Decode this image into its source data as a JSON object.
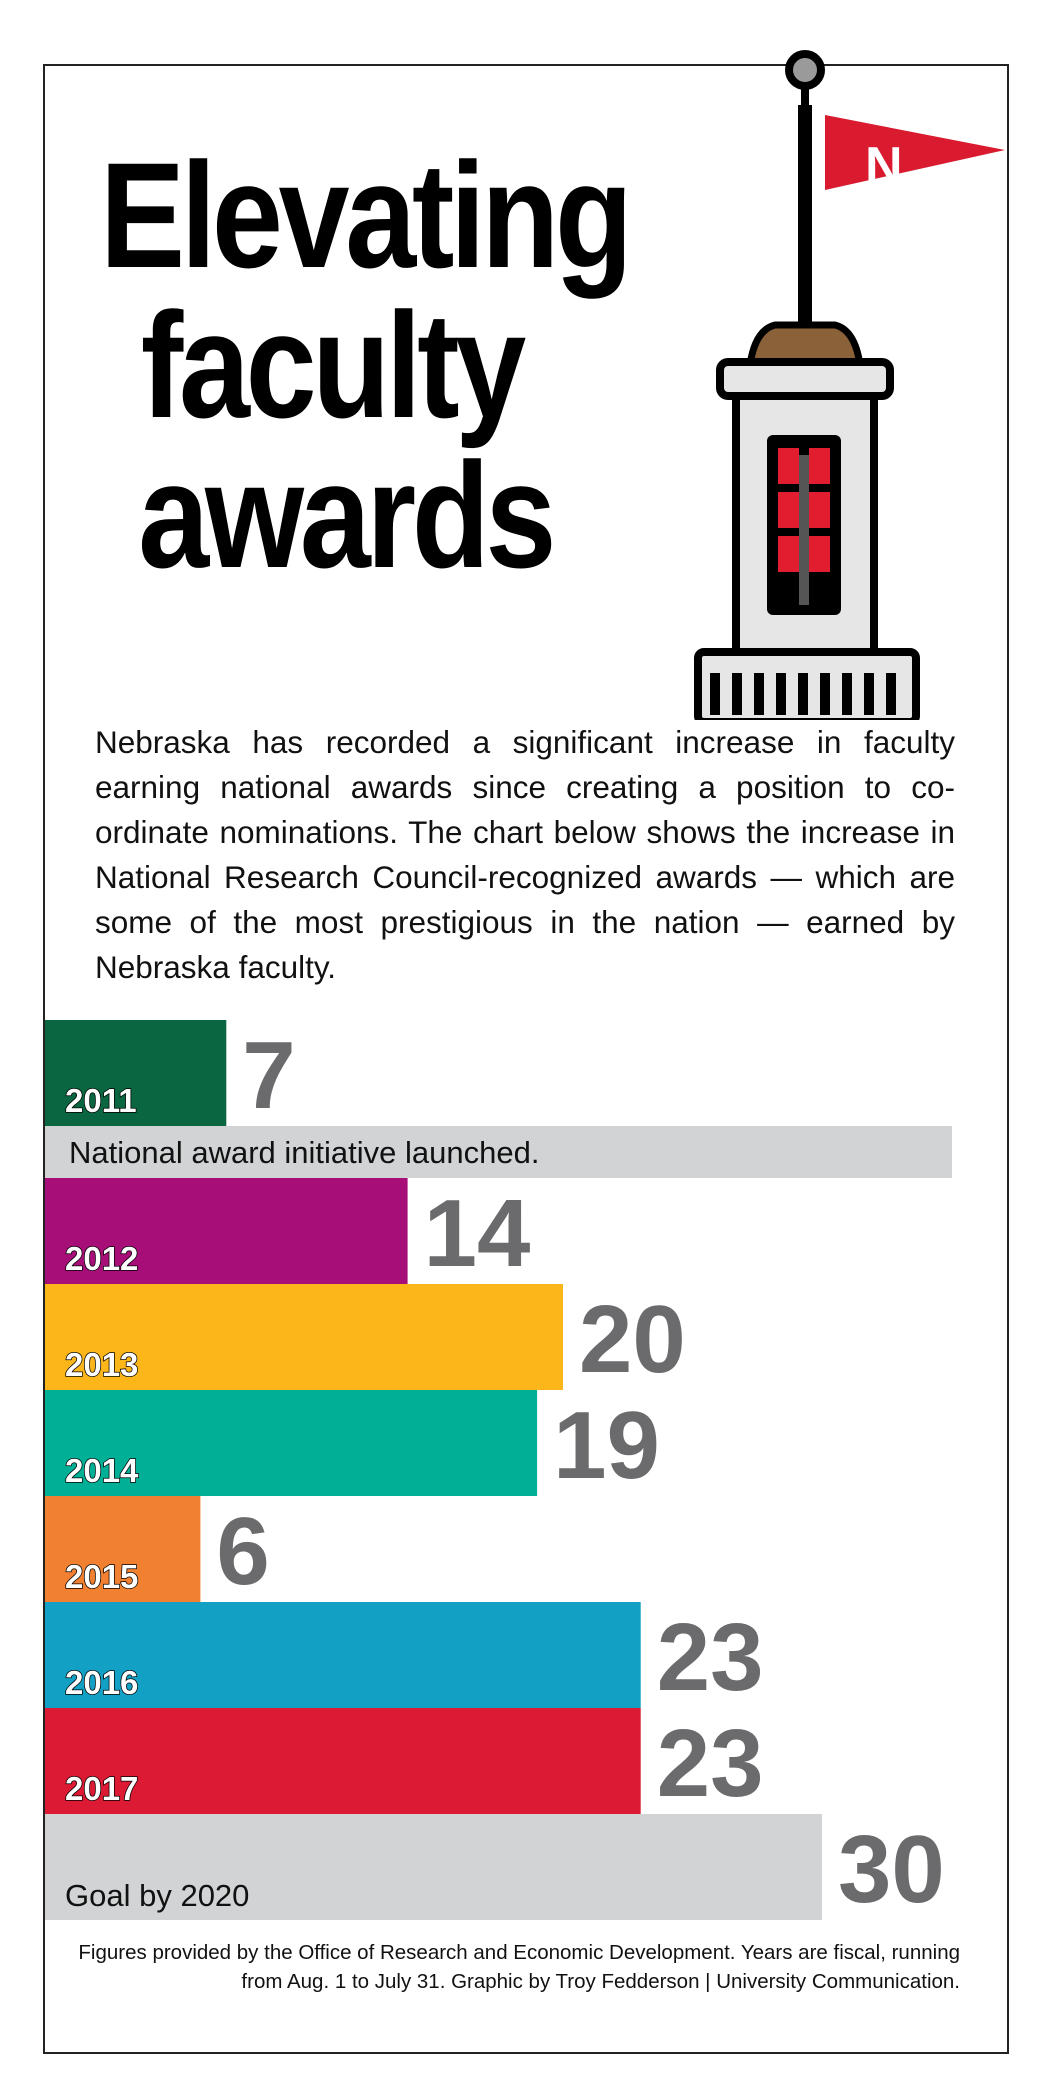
{
  "title": {
    "line1": "Elevating",
    "line2": "faculty",
    "line3": "awards"
  },
  "flag_letter": "N",
  "intro": "Nebraska has recorded a significant increase in faculty earning national awards since creating a position to co-ordinate nominations. The chart below shows the increase in National Research Council-recognized awards — which are some of the most prestigious in the nation — earned by Nebraska faculty.",
  "chart_data": {
    "type": "bar",
    "orientation": "horizontal",
    "xlim": [
      0,
      36
    ],
    "categories": [
      "2011",
      "2012",
      "2013",
      "2014",
      "2015",
      "2016",
      "2017",
      "Goal by 2020"
    ],
    "values": [
      7,
      14,
      20,
      19,
      6,
      23,
      23,
      30
    ],
    "colors": [
      "#0a6640",
      "#a70e78",
      "#fcb61a",
      "#00b096",
      "#f28031",
      "#13a0c5",
      "#dc1a33",
      "#d1d3d4"
    ],
    "annotation": {
      "after": "2011",
      "text": "National award initiative launched."
    }
  },
  "footnote": "Figures provided by the Office of Research and Economic Development. Years are fiscal, running from Aug. 1 to July 31. Graphic by Troy Fedderson | University Communication."
}
